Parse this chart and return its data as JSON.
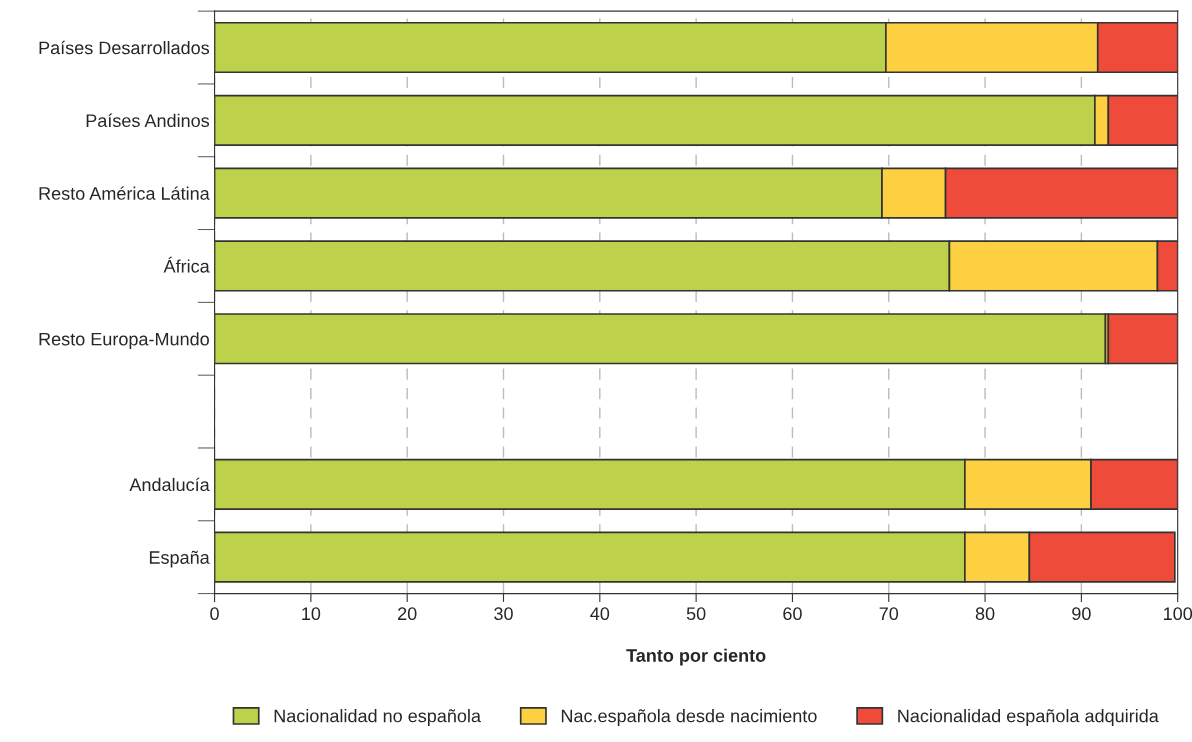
{
  "chart_data": {
    "type": "bar",
    "orientation": "horizontal",
    "stacked": true,
    "xlabel": "Tanto por ciento",
    "categories": [
      "Países Desarrollados",
      "Países Andinos",
      "Resto América Látina",
      "África",
      "Resto Europa-Mundo",
      null,
      "Andalucía",
      "España"
    ],
    "series": [
      {
        "name": "Nacionalidad no española",
        "color": "#bdd14a",
        "values": [
          69.7,
          91.4,
          69.3,
          76.3,
          92.5,
          null,
          77.9,
          77.9
        ]
      },
      {
        "name": "Nac.española desde nacimiento",
        "color": "#fdd041",
        "values": [
          22.0,
          1.4,
          6.6,
          21.6,
          0.3,
          null,
          13.1,
          6.7
        ]
      },
      {
        "name": "Nacionalidad española adquirida",
        "color": "#ef4b3b",
        "values": [
          8.3,
          7.2,
          24.1,
          2.1,
          7.2,
          null,
          9.0,
          15.1
        ]
      }
    ],
    "xlim": [
      0,
      100
    ],
    "xticks": [
      0,
      10,
      20,
      30,
      40,
      50,
      60,
      70,
      80,
      90,
      100
    ],
    "grid": "x",
    "legend": "bottom"
  }
}
